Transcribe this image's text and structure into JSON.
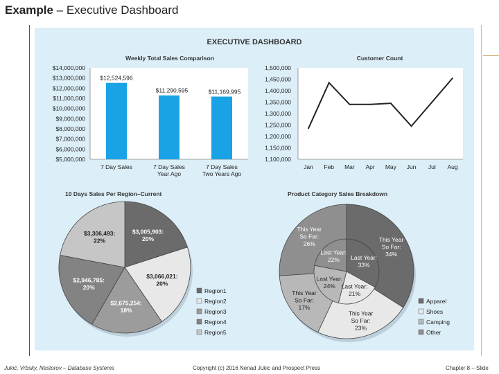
{
  "slide": {
    "title_bold": "Example",
    "title_rest": " – Executive Dashboard"
  },
  "dashboard": {
    "heading": "EXECUTIVE DASHBOARD",
    "background": "#dceef8"
  },
  "chart_data": [
    {
      "type": "bar",
      "title": "Weekly Total Sales Comparison",
      "categories": [
        "7 Day Sales",
        "7 Day Sales Year Ago",
        "7 Day Sales Two Years Ago"
      ],
      "category_lines": [
        [
          "7 Day Sales"
        ],
        [
          "7 Day Sales",
          "Year Ago"
        ],
        [
          "7 Day Sales",
          "Two Years Ago"
        ]
      ],
      "values": [
        12524596,
        11290595,
        11169995
      ],
      "data_labels": [
        "$12,524,596",
        "$11,290,595",
        "$11,169,995"
      ],
      "ylim": [
        5000000,
        14000000
      ],
      "yticks": [
        "$14,000,000",
        "$13,000,000",
        "$12,000,000",
        "$11,000,000",
        "$10,000,000",
        "$9,000,000",
        "$8,000,000",
        "$7,000,000",
        "$6,000,000",
        "$5,000,000"
      ],
      "color": "#19a3e6"
    },
    {
      "type": "line",
      "title": "Customer Count",
      "categories": [
        "Jan",
        "Feb",
        "Mar",
        "Apr",
        "May",
        "Jun",
        "Jul",
        "Aug"
      ],
      "values": [
        1235000,
        1435000,
        1340000,
        1340000,
        1345000,
        1245000,
        1350000,
        1455000
      ],
      "ylim": [
        1100000,
        1500000
      ],
      "yticks": [
        "1,500,000",
        "1,450,000",
        "1,400,000",
        "1,350,000",
        "1,300,000",
        "1,250,000",
        "1,200,000",
        "1,150,000",
        "1,100,000"
      ]
    },
    {
      "type": "pie",
      "title": "10 Days Sales Per Region–Current",
      "slices": [
        {
          "name": "Region1",
          "value": 3005903,
          "label": [
            "$3,005,903:",
            "20%"
          ],
          "color": "#6b6b6b"
        },
        {
          "name": "Region2",
          "value": 3066021,
          "label": [
            "$3,066,021:",
            "20%"
          ],
          "color": "#e8e8e8"
        },
        {
          "name": "Region3",
          "value": 2675254,
          "label": [
            "$2,675,254:",
            "18%"
          ],
          "color": "#9c9c9c"
        },
        {
          "name": "Region4",
          "value": 2946785,
          "label": [
            "$2,946,785:",
            "20%"
          ],
          "color": "#838383"
        },
        {
          "name": "Region5",
          "value": 3306493,
          "label": [
            "$3,306,493:",
            "22%"
          ],
          "color": "#c6c6c6"
        }
      ],
      "legend": [
        "Region1",
        "Region2",
        "Region3",
        "Region4",
        "Region5"
      ]
    },
    {
      "type": "pie",
      "title": "Product Category Sales Breakdown",
      "outer": [
        {
          "name": "Apparel",
          "value": 34,
          "label": [
            "This Year",
            "So Far:",
            "34%"
          ],
          "color": "#6b6b6b"
        },
        {
          "name": "Shoes",
          "value": 23,
          "label": [
            "This Year",
            "So Far:",
            "23%"
          ],
          "color": "#e8e8e8"
        },
        {
          "name": "Camping",
          "value": 17,
          "label": [
            "This Year",
            "So Far:",
            "17%"
          ],
          "color": "#b8b8b8"
        },
        {
          "name": "Other",
          "value": 26,
          "label": [
            "This Year",
            "So Far:",
            "26%"
          ],
          "color": "#8f8f8f"
        }
      ],
      "inner": [
        {
          "name": "Apparel",
          "value": 33,
          "label": [
            "Last Year:",
            "33%"
          ],
          "color": "#6b6b6b"
        },
        {
          "name": "Shoes",
          "value": 21,
          "label": [
            "Last Year:",
            "21%"
          ],
          "color": "#e8e8e8"
        },
        {
          "name": "Camping",
          "value": 24,
          "label": [
            "Last Year:",
            "24%"
          ],
          "color": "#b8b8b8"
        },
        {
          "name": "Other",
          "value": 22,
          "label": [
            "Last Year:",
            "22%"
          ],
          "color": "#8f8f8f"
        }
      ],
      "legend": [
        "Apparel",
        "Shoes",
        "Camping",
        "Other"
      ]
    }
  ],
  "footer": {
    "left": "Jukić, Vrbsky, Nestorov – Database Systems",
    "middle": "Copyright (c) 2016 Nenad Jukic and Prospect Press",
    "right": "Chapter 8 – Slide"
  }
}
